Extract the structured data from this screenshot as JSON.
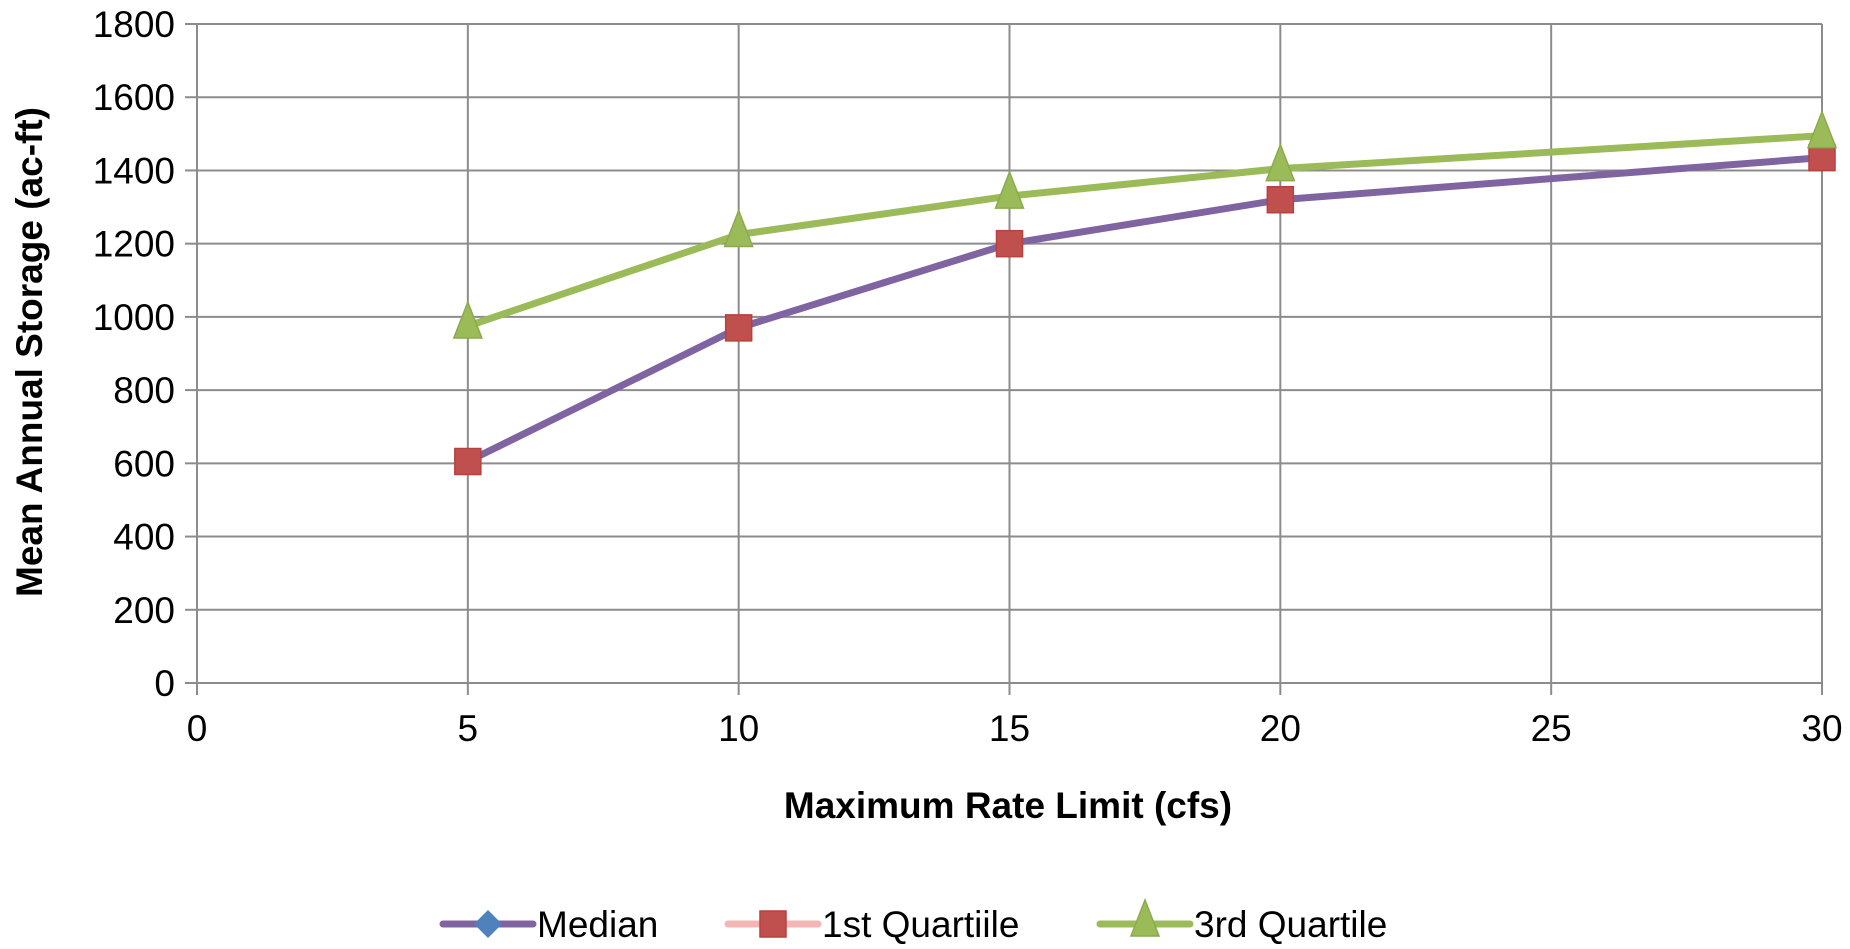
{
  "chart_data": {
    "type": "line",
    "xlabel": "Maximum Rate Limit (cfs)",
    "ylabel": "Mean Annual Storage  (ac-ft)",
    "xlim": [
      0,
      30
    ],
    "ylim": [
      0,
      1800
    ],
    "x_ticks": [
      0,
      5,
      10,
      15,
      20,
      25,
      30
    ],
    "y_ticks": [
      0,
      200,
      400,
      600,
      800,
      1000,
      1200,
      1400,
      1600,
      1800
    ],
    "grid": true,
    "legend_position": "bottom",
    "series": [
      {
        "name": "Median",
        "x": [
          5,
          10,
          15,
          20,
          30
        ],
        "y": [
          605,
          970,
          1200,
          1320,
          1435
        ],
        "color": "#4f81bd",
        "line_color": "#8064a2",
        "marker": "diamond",
        "show_line": true,
        "show_markers": false
      },
      {
        "name": "1st Quartiile",
        "x": [
          5,
          10,
          15,
          20,
          30
        ],
        "y": [
          605,
          970,
          1200,
          1320,
          1435
        ],
        "color": "#c0504d",
        "line_color": "#f4b6b4",
        "marker": "square",
        "show_line": false,
        "show_markers": true
      },
      {
        "name": "3rd Quartile",
        "x": [
          5,
          10,
          15,
          20,
          30
        ],
        "y": [
          975,
          1225,
          1330,
          1405,
          1495
        ],
        "color": "#9bbb59",
        "line_color": "#9bbb59",
        "marker": "triangle",
        "show_line": true,
        "show_markers": true
      }
    ]
  }
}
